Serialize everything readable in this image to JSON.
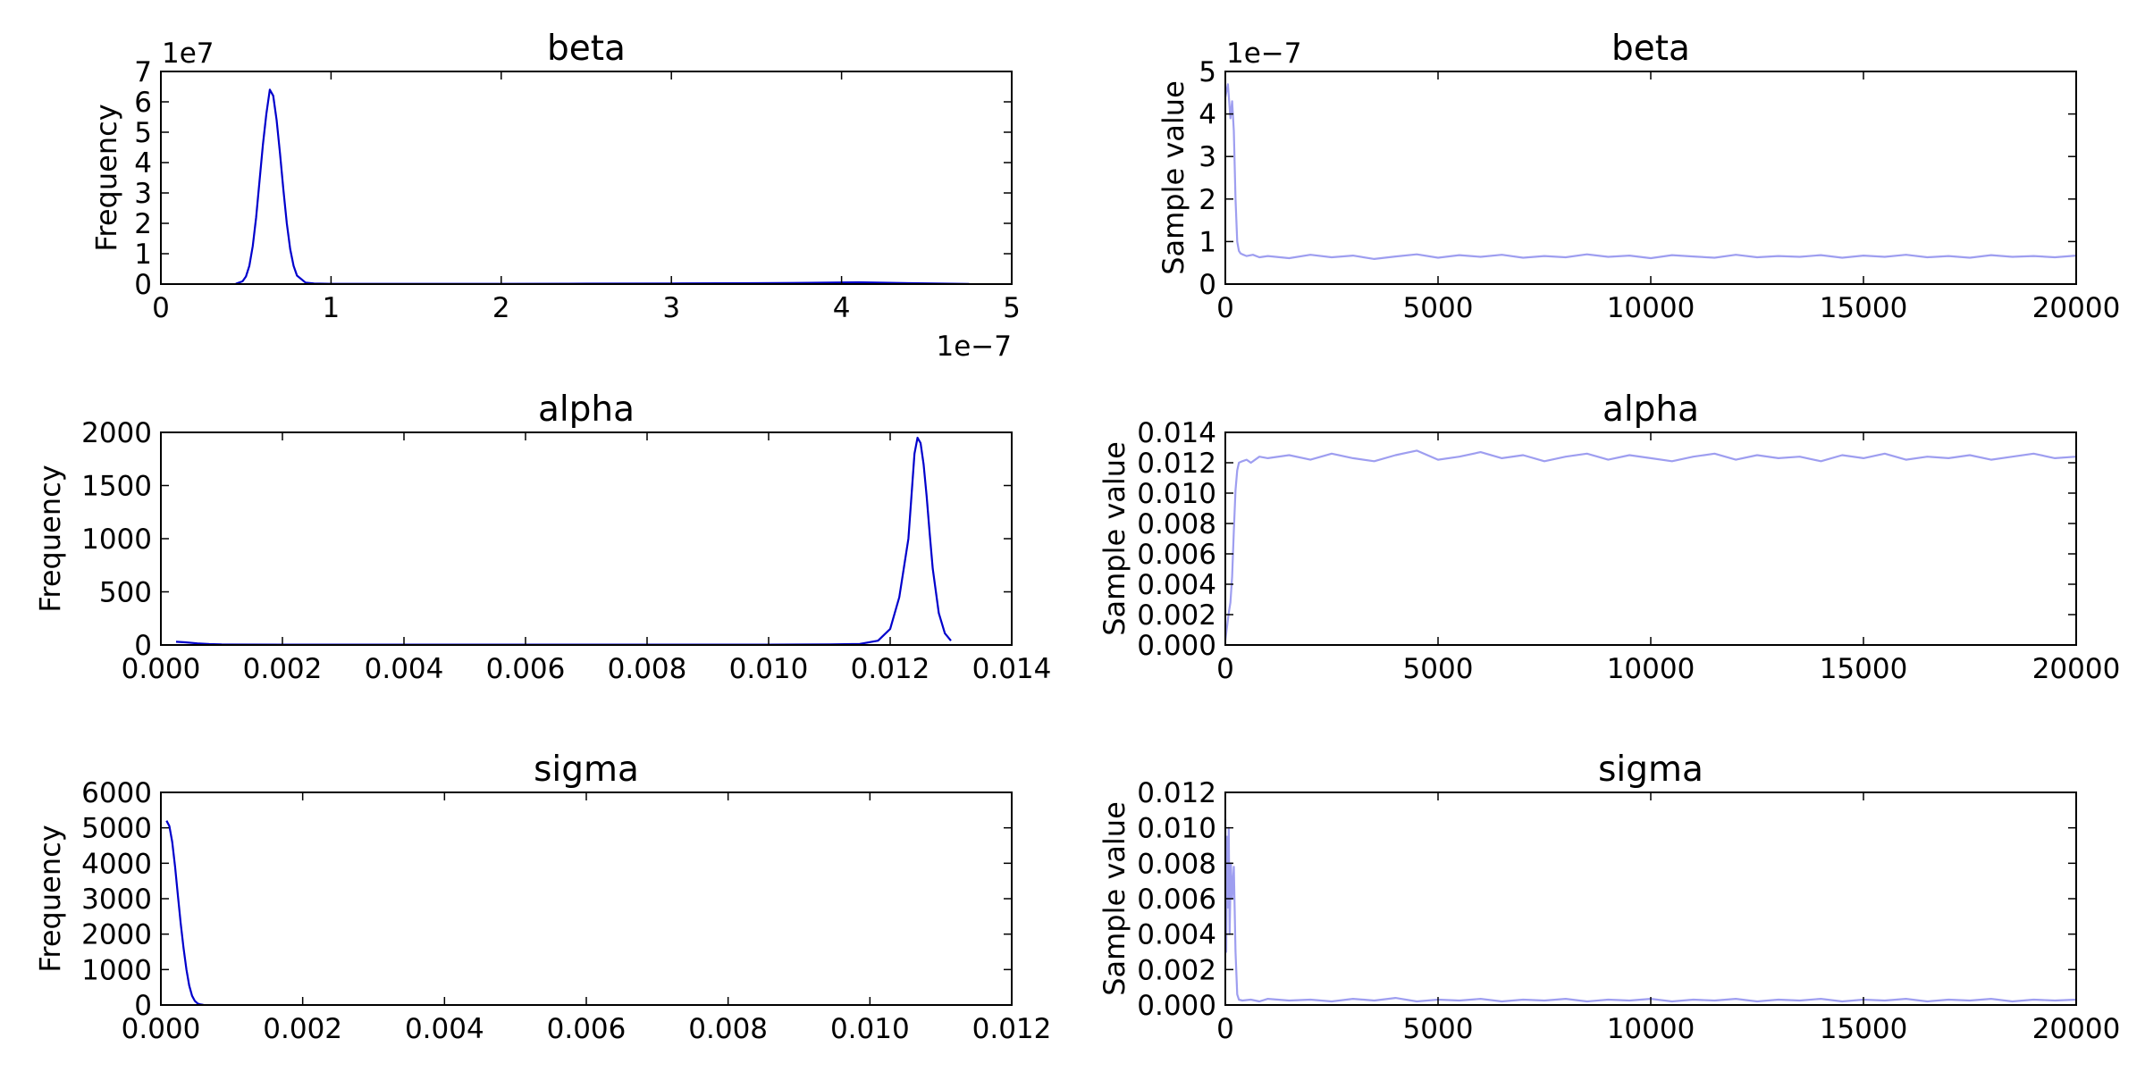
{
  "colors": {
    "kde": "#0000cc",
    "trace": "#9e9ef0",
    "axes": "#000000",
    "background": "#ffffff"
  },
  "chart_data": [
    {
      "id": "beta-hist",
      "type": "line",
      "title": "beta",
      "ylabel": "Frequency",
      "xlim": [
        0,
        5e-07
      ],
      "ylim": [
        0,
        70000000.0
      ],
      "x_ticks": [
        0,
        1e-07,
        2e-07,
        3e-07,
        4e-07,
        5e-07
      ],
      "x_tick_labels": [
        "0",
        "1",
        "2",
        "3",
        "4",
        "5"
      ],
      "y_ticks": [
        0,
        10000000.0,
        20000000.0,
        30000000.0,
        40000000.0,
        50000000.0,
        60000000.0,
        70000000.0
      ],
      "y_tick_labels": [
        "0",
        "1",
        "2",
        "3",
        "4",
        "5",
        "6",
        "7"
      ],
      "x_offset_label": "1e−7",
      "y_offset_label": "1e7",
      "series": [
        {
          "x": [
            4.4e-08,
            4.8e-08,
            5e-08,
            5.2e-08,
            5.4e-08,
            5.6e-08,
            5.8e-08,
            6e-08,
            6.2e-08,
            6.4e-08,
            6.6e-08,
            6.8e-08,
            7e-08,
            7.2e-08,
            7.4e-08,
            7.6e-08,
            7.8e-08,
            8e-08,
            8.5e-08,
            9e-08,
            1e-07,
            1.5e-07,
            2e-07,
            2.5e-07,
            3e-07,
            3.5e-07,
            3.8e-07,
            4.1e-07,
            4.4e-07,
            4.75e-07
          ],
          "y": [
            100000,
            900000,
            2500000,
            6000000,
            12500000,
            22000000,
            34000000,
            46000000,
            56000000,
            64000000,
            62000000,
            54000000,
            43000000,
            31000000,
            20000000,
            11500000,
            6000000,
            2800000,
            500000,
            200000,
            100000,
            100000,
            100000,
            150000,
            200000,
            300000,
            400000,
            600000,
            300000,
            50000
          ]
        }
      ]
    },
    {
      "id": "beta-trace",
      "type": "line",
      "title": "beta",
      "ylabel": "Sample value",
      "xlim": [
        0,
        20000
      ],
      "ylim": [
        0,
        5e-07
      ],
      "x_ticks": [
        0,
        5000,
        10000,
        15000,
        20000
      ],
      "x_tick_labels": [
        "0",
        "5000",
        "10000",
        "15000",
        "20000"
      ],
      "y_ticks": [
        0,
        1e-07,
        2e-07,
        3e-07,
        4e-07,
        5e-07
      ],
      "y_tick_labels": [
        "0",
        "1",
        "2",
        "3",
        "4",
        "5"
      ],
      "y_offset_label": "1e−7",
      "series": [
        {
          "x": [
            0,
            60,
            120,
            160,
            200,
            240,
            280,
            320,
            360,
            400,
            500,
            650,
            800,
            1000,
            1500,
            2000,
            2500,
            3000,
            3500,
            4000,
            4500,
            5000,
            5500,
            6000,
            6500,
            7000,
            7500,
            8000,
            8500,
            9000,
            9500,
            10000,
            10500,
            11000,
            11500,
            12000,
            12500,
            13000,
            13500,
            14000,
            14500,
            15000,
            15500,
            16000,
            16500,
            17000,
            17500,
            18000,
            18500,
            19000,
            19500,
            20000
          ],
          "y": [
            4.4e-07,
            4.7e-07,
            3.9e-07,
            4.3e-07,
            3.6e-07,
            2e-07,
            1e-07,
            7.8e-08,
            7.2e-08,
            7e-08,
            6.6e-08,
            6.9e-08,
            6.3e-08,
            6.6e-08,
            6.1e-08,
            6.9e-08,
            6.3e-08,
            6.7e-08,
            5.9e-08,
            6.5e-08,
            7e-08,
            6.2e-08,
            6.8e-08,
            6.4e-08,
            6.9e-08,
            6.2e-08,
            6.6e-08,
            6.3e-08,
            7e-08,
            6.4e-08,
            6.7e-08,
            6.1e-08,
            6.8e-08,
            6.5e-08,
            6.2e-08,
            6.9e-08,
            6.3e-08,
            6.6e-08,
            6.4e-08,
            6.8e-08,
            6.2e-08,
            6.7e-08,
            6.4e-08,
            6.9e-08,
            6.3e-08,
            6.6e-08,
            6.2e-08,
            6.8e-08,
            6.4e-08,
            6.6e-08,
            6.3e-08,
            6.7e-08
          ]
        }
      ]
    },
    {
      "id": "alpha-hist",
      "type": "line",
      "title": "alpha",
      "ylabel": "Frequency",
      "xlim": [
        0,
        0.014
      ],
      "ylim": [
        0,
        2000
      ],
      "x_ticks": [
        0,
        0.002,
        0.004,
        0.006,
        0.008,
        0.01,
        0.012,
        0.014
      ],
      "x_tick_labels": [
        "0.000",
        "0.002",
        "0.004",
        "0.006",
        "0.008",
        "0.010",
        "0.012",
        "0.014"
      ],
      "y_ticks": [
        0,
        500,
        1000,
        1500,
        2000
      ],
      "y_tick_labels": [
        "0",
        "500",
        "1000",
        "1500",
        "2000"
      ],
      "series": [
        {
          "x": [
            0.00025,
            0.0004,
            0.0006,
            0.0008,
            0.001,
            0.002,
            0.004,
            0.006,
            0.008,
            0.01,
            0.011,
            0.0115,
            0.0118,
            0.012,
            0.01215,
            0.0123,
            0.01235,
            0.0124,
            0.01245,
            0.0125,
            0.01255,
            0.0126,
            0.01265,
            0.0127,
            0.0128,
            0.0129,
            0.013
          ],
          "y": [
            30,
            25,
            15,
            8,
            5,
            3,
            3,
            3,
            3,
            3,
            5,
            10,
            40,
            150,
            450,
            1000,
            1400,
            1800,
            1950,
            1900,
            1700,
            1400,
            1050,
            720,
            300,
            110,
            40
          ]
        }
      ]
    },
    {
      "id": "alpha-trace",
      "type": "line",
      "title": "alpha",
      "ylabel": "Sample value",
      "xlim": [
        0,
        20000
      ],
      "ylim": [
        0,
        0.014
      ],
      "x_ticks": [
        0,
        5000,
        10000,
        15000,
        20000
      ],
      "x_tick_labels": [
        "0",
        "5000",
        "10000",
        "15000",
        "20000"
      ],
      "y_ticks": [
        0,
        0.002,
        0.004,
        0.006,
        0.008,
        0.01,
        0.012,
        0.014
      ],
      "y_tick_labels": [
        "0.000",
        "0.002",
        "0.004",
        "0.006",
        "0.008",
        "0.010",
        "0.012",
        "0.014"
      ],
      "series": [
        {
          "x": [
            0,
            40,
            80,
            120,
            160,
            200,
            240,
            280,
            320,
            400,
            500,
            600,
            800,
            1000,
            1500,
            2000,
            2500,
            3000,
            3500,
            4000,
            4500,
            5000,
            5500,
            6000,
            6500,
            7000,
            7500,
            8000,
            8500,
            9000,
            9500,
            10000,
            10500,
            11000,
            11500,
            12000,
            12500,
            13000,
            13500,
            14000,
            14500,
            15000,
            15500,
            16000,
            16500,
            17000,
            17500,
            18000,
            18500,
            19000,
            19500,
            20000
          ],
          "y": [
            0.0003,
            0.0012,
            0.0021,
            0.0028,
            0.0045,
            0.0075,
            0.0102,
            0.0115,
            0.012,
            0.0121,
            0.0122,
            0.012,
            0.0124,
            0.0123,
            0.0125,
            0.0122,
            0.0126,
            0.0123,
            0.0121,
            0.0125,
            0.0128,
            0.0122,
            0.0124,
            0.0127,
            0.0123,
            0.0125,
            0.0121,
            0.0124,
            0.0126,
            0.0122,
            0.0125,
            0.0123,
            0.0121,
            0.0124,
            0.0126,
            0.0122,
            0.0125,
            0.0123,
            0.0124,
            0.0121,
            0.0125,
            0.0123,
            0.0126,
            0.0122,
            0.0124,
            0.0123,
            0.0125,
            0.0122,
            0.0124,
            0.0126,
            0.0123,
            0.0124
          ]
        }
      ]
    },
    {
      "id": "sigma-hist",
      "type": "line",
      "title": "sigma",
      "ylabel": "Frequency",
      "xlim": [
        0,
        0.012
      ],
      "ylim": [
        0,
        6000
      ],
      "x_ticks": [
        0,
        0.002,
        0.004,
        0.006,
        0.008,
        0.01,
        0.012
      ],
      "x_tick_labels": [
        "0.000",
        "0.002",
        "0.004",
        "0.006",
        "0.008",
        "0.010",
        "0.012"
      ],
      "y_ticks": [
        0,
        1000,
        2000,
        3000,
        4000,
        5000,
        6000
      ],
      "y_tick_labels": [
        "0",
        "1000",
        "2000",
        "3000",
        "4000",
        "5000",
        "6000"
      ],
      "series": [
        {
          "x": [
            8e-05,
            0.00012,
            0.00016,
            0.0002,
            0.00024,
            0.00028,
            0.00032,
            0.00036,
            0.0004,
            0.00044,
            0.00048,
            0.00052,
            0.00056,
            0.0006
          ],
          "y": [
            5200,
            5050,
            4600,
            3900,
            3100,
            2300,
            1600,
            1000,
            550,
            260,
            110,
            40,
            15,
            5
          ]
        }
      ]
    },
    {
      "id": "sigma-trace",
      "type": "line",
      "title": "sigma",
      "ylabel": "Sample value",
      "xlim": [
        0,
        20000
      ],
      "ylim": [
        0,
        0.012
      ],
      "x_ticks": [
        0,
        5000,
        10000,
        15000,
        20000
      ],
      "x_tick_labels": [
        "0",
        "5000",
        "10000",
        "15000",
        "20000"
      ],
      "y_ticks": [
        0,
        0.002,
        0.004,
        0.006,
        0.008,
        0.01,
        0.012
      ],
      "y_tick_labels": [
        "0.000",
        "0.002",
        "0.004",
        "0.006",
        "0.008",
        "0.010",
        "0.012"
      ],
      "series": [
        {
          "x": [
            0,
            20,
            40,
            60,
            80,
            100,
            130,
            160,
            200,
            240,
            280,
            320,
            400,
            600,
            800,
            1000,
            1500,
            2000,
            2500,
            3000,
            3500,
            4000,
            4500,
            5000,
            5500,
            6000,
            6500,
            7000,
            7500,
            8000,
            8500,
            9000,
            9500,
            10000,
            10500,
            11000,
            11500,
            12000,
            12500,
            13000,
            13500,
            14000,
            14500,
            15000,
            15500,
            16000,
            16500,
            17000,
            17500,
            18000,
            18500,
            19000,
            19500,
            20000
          ],
          "y": [
            0.0105,
            0.003,
            0.0095,
            0.0055,
            0.01,
            0.004,
            0.008,
            0.006,
            0.0078,
            0.003,
            0.0006,
            0.0003,
            0.00025,
            0.0003,
            0.0002,
            0.00035,
            0.00025,
            0.0003,
            0.0002,
            0.00035,
            0.00025,
            0.0004,
            0.0002,
            0.0003,
            0.00025,
            0.00035,
            0.0002,
            0.0003,
            0.00025,
            0.00035,
            0.0002,
            0.0003,
            0.00025,
            0.00035,
            0.0002,
            0.0003,
            0.00025,
            0.00035,
            0.0002,
            0.0003,
            0.00025,
            0.00035,
            0.0002,
            0.0003,
            0.00025,
            0.00035,
            0.0002,
            0.0003,
            0.00025,
            0.00035,
            0.0002,
            0.0003,
            0.00025,
            0.0003
          ]
        }
      ]
    }
  ]
}
